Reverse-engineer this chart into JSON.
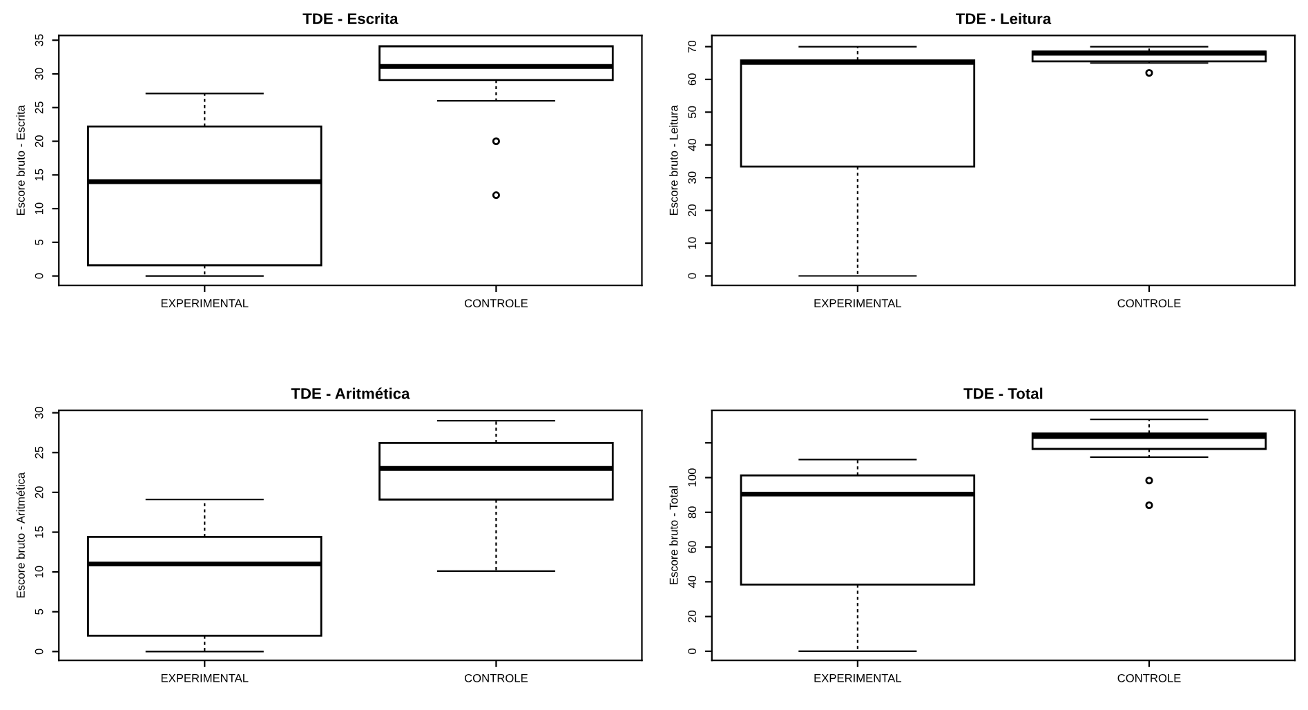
{
  "chart_data": [
    {
      "type": "box",
      "title": "TDE - Escrita",
      "ylabel": "Escore bruto - Escrita",
      "categories": [
        "EXPERIMENTAL",
        "CONTROLE"
      ],
      "ylim": [
        -1.4,
        35.7
      ],
      "yticks": [
        0,
        5,
        10,
        15,
        20,
        25,
        30,
        35
      ],
      "color": "#000000",
      "boxes": [
        {
          "low": 0,
          "q1": 1.6,
          "median": 14,
          "q3": 22.2,
          "high": 27.1
        },
        {
          "low": 26,
          "q1": 29.1,
          "median": 31.1,
          "q3": 34.1,
          "high": 34.1,
          "outliers": [
            20,
            12
          ]
        }
      ]
    },
    {
      "type": "box",
      "title": "TDE - Leitura",
      "ylabel": "Escore bruto - Leitura",
      "categories": [
        "EXPERIMENTAL",
        "CONTROLE"
      ],
      "ylim": [
        -2.9,
        73.4
      ],
      "yticks": [
        0,
        10,
        20,
        30,
        40,
        50,
        60,
        70
      ],
      "color": "#000000",
      "boxes": [
        {
          "low": 0,
          "q1": 33.4,
          "median": 65.2,
          "q3": 65.8,
          "high": 70
        },
        {
          "low": 65,
          "q1": 65.5,
          "median": 68,
          "q3": 68.5,
          "high": 70,
          "outliers": [
            62
          ]
        }
      ]
    },
    {
      "type": "box",
      "title": "TDE - Aritmética",
      "ylabel": "Escore bruto - Aritmética",
      "categories": [
        "EXPERIMENTAL",
        "CONTROLE"
      ],
      "ylim": [
        -1.1,
        30.3
      ],
      "yticks": [
        0,
        5,
        10,
        15,
        20,
        25,
        30
      ],
      "color": "#000000",
      "boxes": [
        {
          "low": 0,
          "q1": 2,
          "median": 11,
          "q3": 14.4,
          "high": 19.1
        },
        {
          "low": 10.1,
          "q1": 19.1,
          "median": 23,
          "q3": 26.2,
          "high": 29
        }
      ]
    },
    {
      "type": "box",
      "title": "TDE - Total",
      "ylabel": "Escore bruto - Total",
      "categories": [
        "EXPERIMENTAL",
        "CONTROLE"
      ],
      "ylim": [
        -5.2,
        138.7
      ],
      "yticks": [
        0,
        20,
        40,
        60,
        80,
        100,
        {
          "value": 120,
          "label": null
        }
      ],
      "color": "#000000",
      "boxes": [
        {
          "low": 0,
          "q1": 38.4,
          "median": 90.5,
          "q3": 101.2,
          "high": 110.4
        },
        {
          "low": 111.8,
          "q1": 116.5,
          "median": 123.7,
          "q3": 125.4,
          "high": 133.5,
          "outliers": [
            98.3,
            84.1
          ]
        }
      ]
    }
  ]
}
